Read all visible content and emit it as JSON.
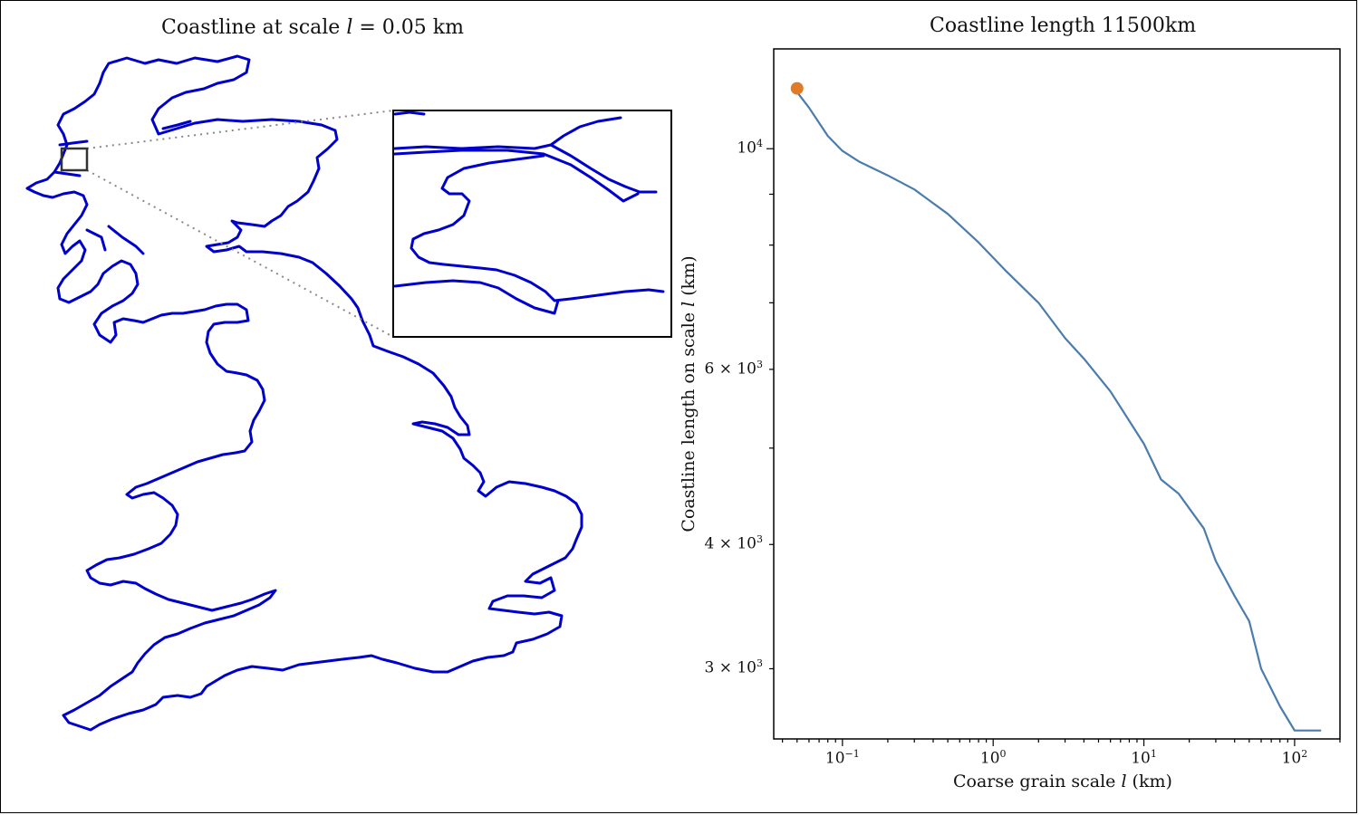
{
  "left_panel": {
    "title": "Coastline at scale ",
    "title_var": "l",
    "title_rest": " = 0.05 km",
    "coast_color": "#0000cc"
  },
  "chart_data": {
    "type": "line",
    "title": "Coastline length 11500km",
    "xlabel_prefix": "Coarse grain scale ",
    "xlabel_var": "l",
    "xlabel_suffix": " (km)",
    "ylabel_prefix": "Coastline length on scale ",
    "ylabel_var": "l",
    "ylabel_suffix": " (km)",
    "x_scale": "log",
    "y_scale": "log",
    "xlim": [
      0.035,
      200
    ],
    "ylim": [
      2550,
      12600
    ],
    "x_ticks": [
      {
        "value": 0.1,
        "label": "10",
        "exp": "−1"
      },
      {
        "value": 1,
        "label": "10",
        "exp": "0"
      },
      {
        "value": 10,
        "label": "10",
        "exp": "1"
      },
      {
        "value": 100,
        "label": "10",
        "exp": "2"
      }
    ],
    "y_ticks": [
      {
        "value": 10000,
        "label": "10",
        "exp": "4"
      },
      {
        "value": 6000,
        "label": "6 × 10",
        "exp": "3"
      },
      {
        "value": 4000,
        "label": "4 × 10",
        "exp": "3"
      },
      {
        "value": 3000,
        "label": "3 × 10",
        "exp": "3"
      }
    ],
    "series": [
      {
        "color": "#4a7cad",
        "x": [
          0.05,
          0.06,
          0.08,
          0.1,
          0.13,
          0.2,
          0.3,
          0.5,
          0.8,
          1.2,
          2,
          3,
          4,
          6,
          10,
          13,
          17,
          20,
          25,
          30,
          40,
          50,
          60,
          80,
          100,
          120,
          150
        ],
        "y": [
          11400,
          11000,
          10300,
          9950,
          9700,
          9400,
          9100,
          8600,
          8050,
          7550,
          7000,
          6450,
          6150,
          5700,
          5050,
          4650,
          4500,
          4350,
          4150,
          3850,
          3550,
          3350,
          3000,
          2750,
          2600,
          2600,
          2600
        ]
      }
    ],
    "highlight_point": {
      "x": 0.05,
      "y": 11500,
      "color": "#e07b27"
    }
  }
}
